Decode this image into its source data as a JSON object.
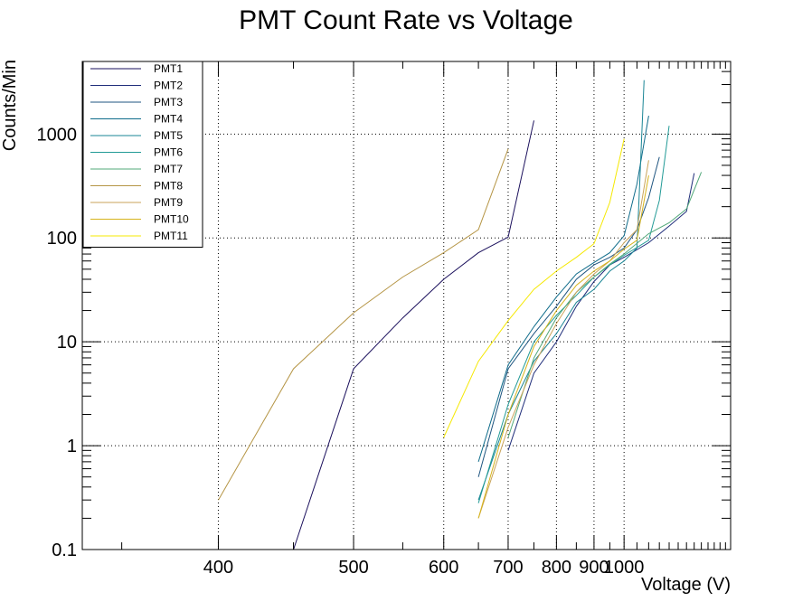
{
  "chart_data": {
    "type": "line",
    "title": "PMT Count Rate vs Voltage",
    "xlabel": "Voltage (V)",
    "ylabel": "Counts/Min",
    "x_scale": "reciprocal",
    "y_scale": "log",
    "xlim": [
      333,
      1650
    ],
    "ylim": [
      0.1,
      5000
    ],
    "grid": true,
    "legend_position": "top-left",
    "x_ticks": [
      {
        "value": 400,
        "label": "400"
      },
      {
        "value": 500,
        "label": "500"
      },
      {
        "value": 600,
        "label": "600"
      },
      {
        "value": 700,
        "label": "700"
      },
      {
        "value": 800,
        "label": "800"
      },
      {
        "value": 900,
        "label": "900"
      },
      {
        "value": 1000,
        "label": "1000"
      }
    ],
    "y_ticks": [
      {
        "value": 0.1,
        "label": "0.1"
      },
      {
        "value": 1,
        "label": "1"
      },
      {
        "value": 10,
        "label": "10"
      },
      {
        "value": 100,
        "label": "100"
      },
      {
        "value": 1000,
        "label": "1000"
      }
    ],
    "series": [
      {
        "name": "PMT1",
        "color": "#1a0f5c",
        "points": [
          [
            450,
            0.1
          ],
          [
            500,
            5.5
          ],
          [
            550,
            17
          ],
          [
            600,
            40
          ],
          [
            650,
            72
          ],
          [
            700,
            102
          ],
          [
            750,
            1350
          ]
        ]
      },
      {
        "name": "PMT2",
        "color": "#1f2d7a",
        "points": [
          [
            700,
            0.9
          ],
          [
            750,
            5
          ],
          [
            800,
            10
          ],
          [
            850,
            22
          ],
          [
            900,
            38
          ],
          [
            950,
            55
          ],
          [
            1000,
            65
          ],
          [
            1100,
            90
          ],
          [
            1200,
            130
          ],
          [
            1300,
            180
          ],
          [
            1350,
            420
          ]
        ]
      },
      {
        "name": "PMT3",
        "color": "#1f5580",
        "points": [
          [
            650,
            0.5
          ],
          [
            700,
            5.5
          ],
          [
            750,
            12
          ],
          [
            800,
            22
          ],
          [
            850,
            40
          ],
          [
            900,
            55
          ],
          [
            950,
            65
          ],
          [
            1000,
            80
          ],
          [
            1050,
            120
          ],
          [
            1100,
            245
          ],
          [
            1150,
            600
          ]
        ]
      },
      {
        "name": "PMT4",
        "color": "#0e6b8a",
        "points": [
          [
            650,
            0.7
          ],
          [
            700,
            6
          ],
          [
            750,
            14
          ],
          [
            800,
            27
          ],
          [
            850,
            45
          ],
          [
            900,
            58
          ],
          [
            950,
            72
          ],
          [
            1000,
            105
          ],
          [
            1050,
            330
          ],
          [
            1100,
            1500
          ]
        ]
      },
      {
        "name": "PMT5",
        "color": "#1a8595",
        "points": [
          [
            650,
            0.3
          ],
          [
            700,
            2
          ],
          [
            750,
            6.5
          ],
          [
            800,
            12
          ],
          [
            850,
            24
          ],
          [
            900,
            32
          ],
          [
            950,
            48
          ],
          [
            1000,
            60
          ],
          [
            1050,
            80
          ],
          [
            1080,
            3300
          ]
        ]
      },
      {
        "name": "PMT6",
        "color": "#219a96",
        "points": [
          [
            650,
            0.28
          ],
          [
            700,
            2.5
          ],
          [
            750,
            10
          ],
          [
            800,
            18
          ],
          [
            850,
            28
          ],
          [
            900,
            42
          ],
          [
            950,
            55
          ],
          [
            1000,
            68
          ],
          [
            1100,
            95
          ],
          [
            1150,
            230
          ],
          [
            1200,
            1200
          ]
        ]
      },
      {
        "name": "PMT7",
        "color": "#52a87a",
        "points": [
          [
            700,
            1.2
          ],
          [
            750,
            7
          ],
          [
            800,
            17
          ],
          [
            850,
            30
          ],
          [
            900,
            42
          ],
          [
            950,
            56
          ],
          [
            1000,
            70
          ],
          [
            1100,
            110
          ],
          [
            1200,
            140
          ],
          [
            1300,
            190
          ],
          [
            1400,
            430
          ]
        ]
      },
      {
        "name": "PMT8",
        "color": "#b59545",
        "points": [
          [
            400,
            0.3
          ],
          [
            450,
            5.5
          ],
          [
            500,
            19
          ],
          [
            550,
            42
          ],
          [
            600,
            72
          ],
          [
            650,
            120
          ],
          [
            700,
            720
          ]
        ]
      },
      {
        "name": "PMT9",
        "color": "#c9a35a",
        "points": [
          [
            650,
            0.2
          ],
          [
            700,
            1.5
          ],
          [
            750,
            6
          ],
          [
            800,
            15
          ],
          [
            850,
            30
          ],
          [
            900,
            45
          ],
          [
            950,
            60
          ],
          [
            1000,
            90
          ],
          [
            1050,
            120
          ],
          [
            1100,
            560
          ]
        ]
      },
      {
        "name": "PMT10",
        "color": "#d6b41c",
        "points": [
          [
            650,
            0.2
          ],
          [
            700,
            2
          ],
          [
            750,
            9
          ],
          [
            800,
            20
          ],
          [
            850,
            35
          ],
          [
            900,
            48
          ],
          [
            950,
            60
          ],
          [
            1000,
            78
          ],
          [
            1050,
            95
          ],
          [
            1100,
            400
          ]
        ]
      },
      {
        "name": "PMT11",
        "color": "#f5e800",
        "points": [
          [
            600,
            1.2
          ],
          [
            650,
            6.5
          ],
          [
            700,
            16
          ],
          [
            750,
            32
          ],
          [
            800,
            48
          ],
          [
            850,
            65
          ],
          [
            900,
            88
          ],
          [
            950,
            220
          ],
          [
            1000,
            900
          ]
        ]
      }
    ]
  }
}
